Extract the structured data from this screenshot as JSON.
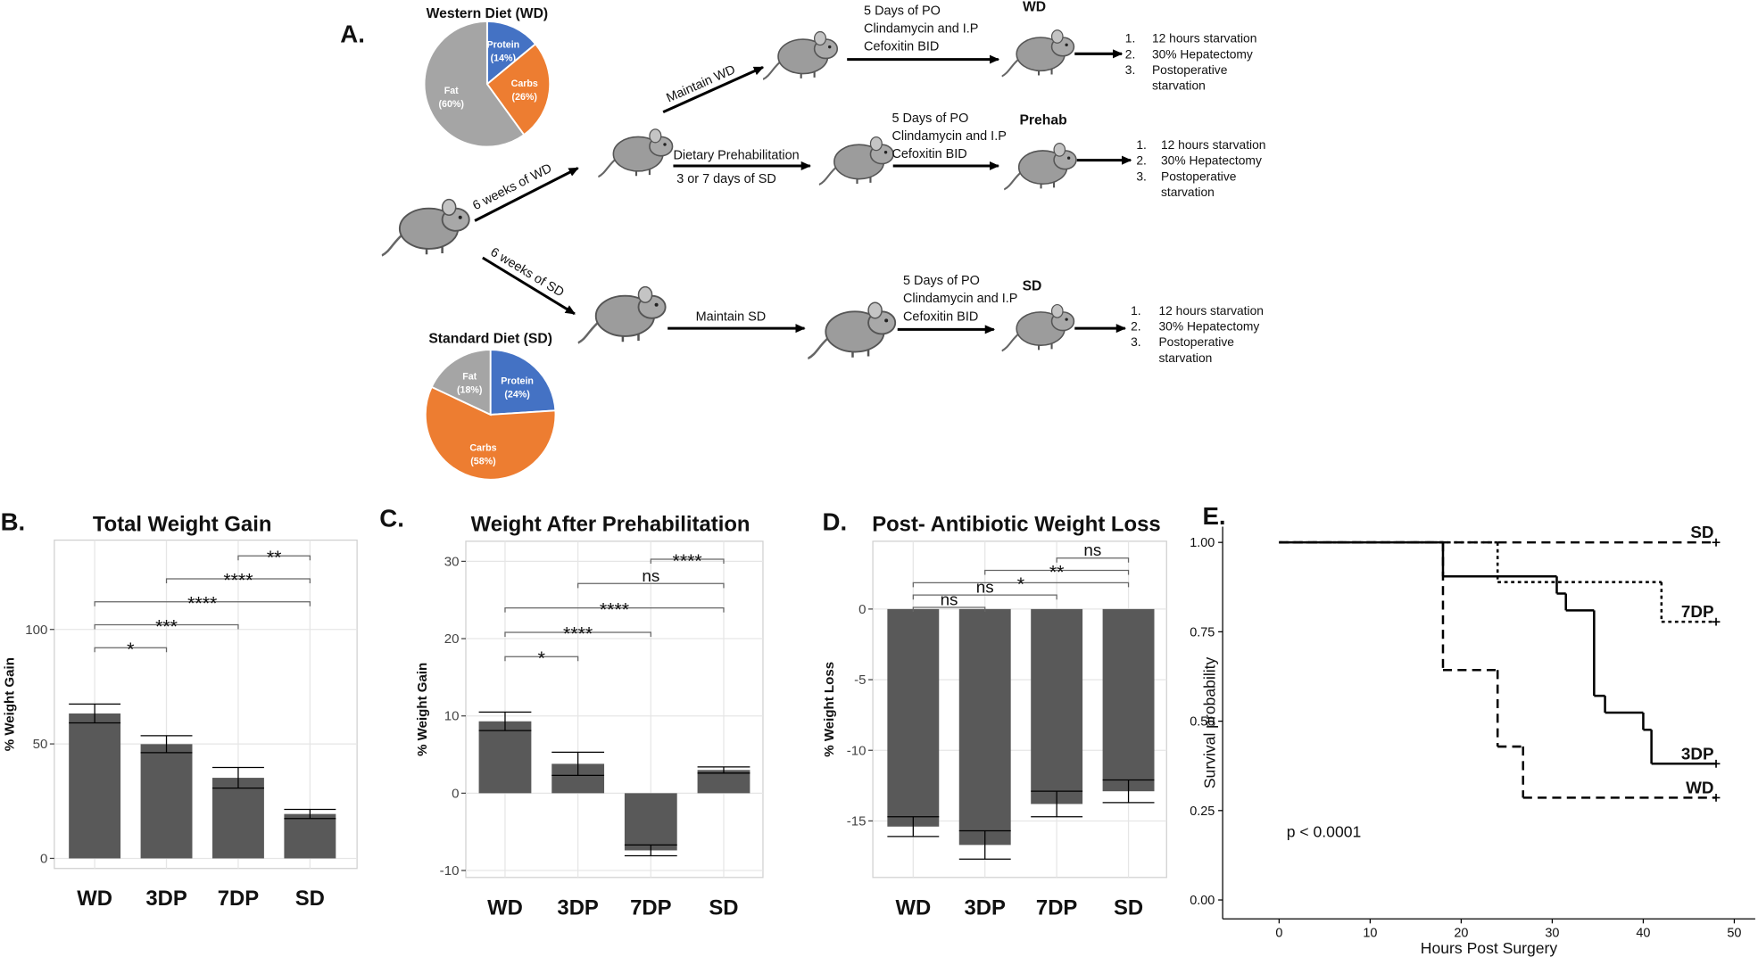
{
  "diagram": {
    "panel_label": "A.",
    "transitions": [
      "6 weeks of WD",
      "6 weeks of SD",
      "Maintain WD",
      "Dietary Prehabilitation",
      "3 or 7 days of SD",
      "Maintain SD"
    ],
    "groups": [
      {
        "name": "WD",
        "treatment": [
          "5 Days of PO",
          "Clindamycin and I.P",
          "Cefoxitin BID"
        ],
        "steps": [
          {
            "marker": "1.",
            "lines": [
              "12 hours starvation"
            ]
          },
          {
            "marker": "2.",
            "lines": [
              "30% Hepatectomy"
            ]
          },
          {
            "marker": "3.",
            "lines": [
              "Postoperative",
              "starvation"
            ]
          }
        ]
      },
      {
        "name": "Prehab",
        "treatment": [
          "5 Days of PO",
          "Clindamycin and I.P",
          "Cefoxitin BID"
        ],
        "steps": [
          {
            "marker": "1.",
            "lines": [
              "12 hours starvation"
            ]
          },
          {
            "marker": "2.",
            "lines": [
              "30% Hepatectomy"
            ]
          },
          {
            "marker": "3.",
            "lines": [
              "Postoperative",
              "starvation"
            ]
          }
        ]
      },
      {
        "name": "SD",
        "treatment": [
          "5 Days of PO",
          "Clindamycin and I.P",
          "Cefoxitin BID"
        ],
        "steps": [
          {
            "marker": "1.",
            "lines": [
              "12 hours starvation"
            ]
          },
          {
            "marker": "2.",
            "lines": [
              "30% Hepatectomy"
            ]
          },
          {
            "marker": "3.",
            "lines": [
              "Postoperative",
              "starvation"
            ]
          }
        ]
      }
    ]
  },
  "chart_data": [
    {
      "type": "pie",
      "title": "Western Diet (WD)",
      "categories": [
        "Protein",
        "Carbs",
        "Fat"
      ],
      "values": [
        14,
        26,
        60
      ],
      "value_labels": [
        "(14%)",
        "(26%)",
        "(60%)"
      ],
      "colors": [
        "#4472c4",
        "#ed7d31",
        "#a5a5a5"
      ]
    },
    {
      "type": "pie",
      "title": "Standard Diet (SD)",
      "categories": [
        "Protein",
        "Carbs",
        "Fat"
      ],
      "values": [
        24,
        58,
        18
      ],
      "value_labels": [
        "(24%)",
        "(58%)",
        "(18%)"
      ],
      "colors": [
        "#4472c4",
        "#ed7d31",
        "#a5a5a5"
      ]
    },
    {
      "type": "bar",
      "panel_label": "B.",
      "title": "Total Weight Gain",
      "ylabel": "% Weight Gain",
      "categories": [
        "WD",
        "3DP",
        "7DP",
        "SD"
      ],
      "values": [
        63.3,
        49.9,
        35.2,
        19.4
      ],
      "errors": [
        4.1,
        3.7,
        4.5,
        2.0
      ],
      "ylim": [
        -4.4,
        139
      ],
      "yticks": [
        0,
        50,
        100
      ],
      "grid": true,
      "color": "#595959",
      "comparisons": [
        {
          "groups": [
            "WD",
            "3DP"
          ],
          "label": "*"
        },
        {
          "groups": [
            "WD",
            "7DP"
          ],
          "label": "***"
        },
        {
          "groups": [
            "WD",
            "SD"
          ],
          "label": "****"
        },
        {
          "groups": [
            "3DP",
            "SD"
          ],
          "label": "****"
        },
        {
          "groups": [
            "7DP",
            "SD"
          ],
          "label": "**"
        }
      ]
    },
    {
      "type": "bar",
      "panel_label": "C.",
      "title": "Weight After Prehabilitation",
      "ylabel": "% Weight Gain",
      "categories": [
        "WD",
        "3DP",
        "7DP",
        "SD"
      ],
      "values": [
        9.3,
        3.8,
        -7.4,
        3.0
      ],
      "errors": [
        1.2,
        1.5,
        0.7,
        0.4
      ],
      "ylim": [
        -10.9,
        32.6
      ],
      "yticks": [
        -10,
        0,
        10,
        20,
        30
      ],
      "grid": true,
      "color": "#595959",
      "comparisons": [
        {
          "groups": [
            "WD",
            "3DP"
          ],
          "label": "*"
        },
        {
          "groups": [
            "WD",
            "7DP"
          ],
          "label": "****"
        },
        {
          "groups": [
            "WD",
            "SD"
          ],
          "label": "****"
        },
        {
          "groups": [
            "3DP",
            "SD"
          ],
          "label": "ns"
        },
        {
          "groups": [
            "7DP",
            "SD"
          ],
          "label": "****"
        }
      ]
    },
    {
      "type": "bar",
      "panel_label": "D.",
      "title": "Post- Antibiotic Weight Loss",
      "ylabel": "% Weight Loss",
      "categories": [
        "WD",
        "3DP",
        "7DP",
        "SD"
      ],
      "values": [
        -15.4,
        -16.7,
        -13.8,
        -12.9
      ],
      "errors": [
        0.7,
        1.0,
        0.9,
        0.8
      ],
      "ylim": [
        -19,
        4.8
      ],
      "yticks": [
        -15,
        -10,
        -5,
        0
      ],
      "grid": true,
      "color": "#595959",
      "comparisons": [
        {
          "groups": [
            "WD",
            "3DP"
          ],
          "label": "ns"
        },
        {
          "groups": [
            "WD",
            "7DP"
          ],
          "label": "ns"
        },
        {
          "groups": [
            "WD",
            "SD"
          ],
          "label": "*"
        },
        {
          "groups": [
            "3DP",
            "SD"
          ],
          "label": "**"
        },
        {
          "groups": [
            "7DP",
            "SD"
          ],
          "label": "ns"
        }
      ]
    },
    {
      "type": "line",
      "panel_label": "E.",
      "xlabel": "Hours Post Surgery",
      "ylabel": "Survival probability",
      "annotation": "p < 0.0001",
      "xlim": [
        -6.2,
        52.3
      ],
      "ylim": [
        -0.053,
        1.044
      ],
      "xticks": [
        0,
        10,
        20,
        30,
        40,
        50
      ],
      "yticks": [
        {
          "value": 0,
          "label": "0.00"
        },
        {
          "value": 0.25,
          "label": "0.25"
        },
        {
          "value": 0.5,
          "label": "0.50"
        },
        {
          "value": 0.75,
          "label": "0.75"
        },
        {
          "value": 1,
          "label": "1.00"
        }
      ],
      "grid": false,
      "series": [
        {
          "name": "SD",
          "color": "#000000",
          "line_style": "dashed",
          "x": [
            0,
            48
          ],
          "values": [
            1,
            1
          ]
        },
        {
          "name": "7DP",
          "color": "#000000",
          "line_style": "dotted",
          "x": [
            0,
            24,
            42,
            48
          ],
          "values": [
            1,
            0.889,
            0.778,
            0.778
          ]
        },
        {
          "name": "3DP",
          "color": "#000000",
          "line_style": "solid",
          "x": [
            0,
            18,
            30.5,
            31.5,
            34.6,
            35.8,
            40,
            40.9,
            48
          ],
          "values": [
            1,
            0.905,
            0.857,
            0.81,
            0.571,
            0.524,
            0.476,
            0.381,
            0.381
          ]
        },
        {
          "name": "WD",
          "color": "#000000",
          "line_style": "dashed",
          "x": [
            0,
            18,
            24,
            26.8,
            48
          ],
          "values": [
            1,
            0.643,
            0.429,
            0.286,
            0.286
          ]
        }
      ]
    }
  ]
}
